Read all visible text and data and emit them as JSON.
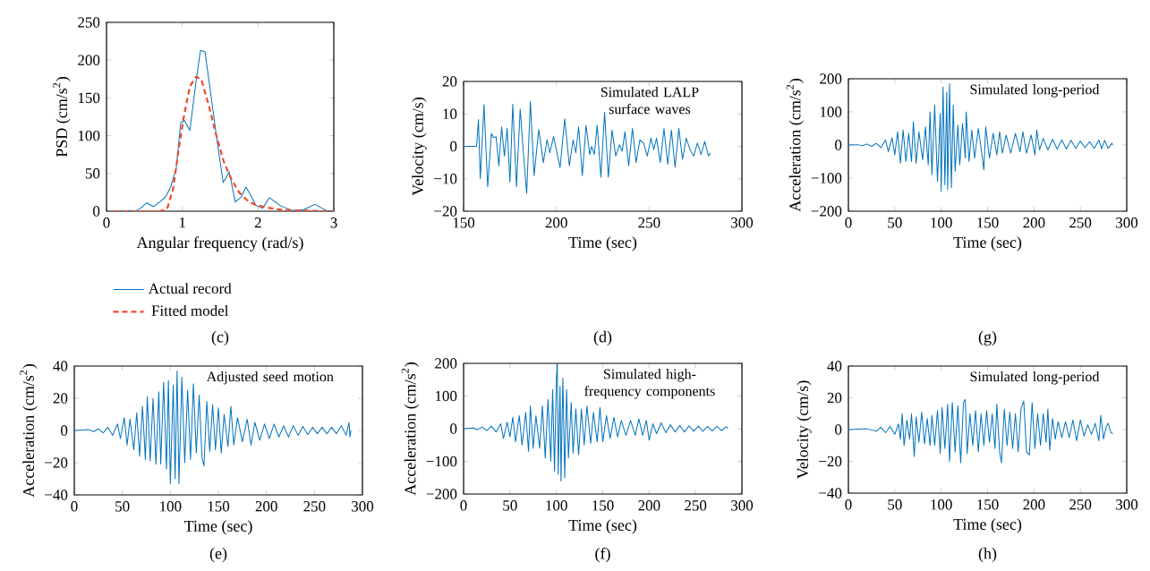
{
  "chart_data": [
    {
      "type": "line",
      "xlabel": "Angular frequency (rad/s)",
      "ylabel": "PSD (cm/s$^{2}$)",
      "annotations": [
        "(c)"
      ],
      "legend": "bottom",
      "xlim": [
        0,
        3
      ],
      "ylim": [
        0,
        250
      ],
      "xticks": [
        0,
        1,
        2,
        3
      ],
      "yticks": [
        0,
        50,
        100,
        150,
        200,
        250
      ],
      "series": [
        {
          "name": "Actual record",
          "color": "#0072bd",
          "line_style": "solid",
          "x": [
            0.1,
            0.4,
            0.45,
            0.53,
            0.62,
            0.7,
            0.78,
            0.85,
            0.92,
            0.98,
            1.03,
            1.1,
            1.18,
            1.24,
            1.3,
            1.37,
            1.45,
            1.54,
            1.62,
            1.7,
            1.78,
            1.84,
            1.9,
            1.97,
            2.06,
            2.15,
            2.3,
            2.45,
            2.6,
            2.75,
            2.9,
            3
          ],
          "values": [
            0,
            1,
            4,
            11,
            6,
            12,
            19,
            33,
            57,
            117,
            120,
            107,
            170,
            213,
            211,
            160,
            100,
            38,
            52,
            12,
            19,
            32,
            22,
            8,
            4,
            18,
            7,
            1,
            2,
            9,
            1,
            0
          ]
        },
        {
          "name": "Fitted model",
          "color": "#f04a2c",
          "line_style": "dashed",
          "x": [
            0.1,
            0.7,
            0.8,
            0.88,
            0.95,
            1.02,
            1.1,
            1.18,
            1.25,
            1.35,
            1.45,
            1.55,
            1.65,
            1.75,
            1.85,
            1.95,
            2.1,
            2.3,
            2.5,
            3
          ],
          "values": [
            0,
            0,
            3,
            30,
            80,
            125,
            165,
            178,
            175,
            140,
            100,
            65,
            42,
            25,
            15,
            9,
            5,
            2,
            1,
            0
          ]
        }
      ]
    },
    {
      "type": "line",
      "xlabel": "Time (sec)",
      "ylabel": "Velocity (cm/s)",
      "annotations": [
        "Simulated LALP surface waves",
        "(d)"
      ],
      "xlim": [
        150,
        300
      ],
      "ylim": [
        -20,
        20
      ],
      "xticks": [
        150,
        200,
        250,
        300
      ],
      "yticks": [
        {
          "value": -20,
          "label": "−20"
        },
        {
          "value": -10,
          "label": "−10"
        },
        0,
        10,
        20
      ],
      "series": [
        {
          "color": "#0072bd",
          "x": [
            150,
            157,
            158,
            159,
            161,
            163,
            165,
            166,
            167.5,
            169,
            170.5,
            172,
            173.5,
            175,
            176.5,
            178.5,
            180.5,
            182.5,
            184,
            186,
            188,
            190.5,
            193,
            195,
            196.5,
            198.5,
            202,
            204.5,
            207,
            209,
            210.5,
            212,
            214,
            216,
            218,
            219,
            220.5,
            222,
            224,
            226,
            228,
            230,
            232,
            234,
            235.5,
            237,
            239,
            241,
            243,
            245,
            247,
            249,
            251,
            252.5,
            254,
            256,
            258,
            260,
            262,
            264,
            266,
            268,
            270,
            272,
            274,
            276,
            278,
            280,
            282,
            283
          ],
          "values": [
            0,
            0,
            8.3,
            -10,
            12.8,
            -12.5,
            4,
            2.7,
            3,
            -6,
            6,
            -3,
            5.5,
            -11,
            13,
            -12.5,
            11.5,
            -4,
            -14.5,
            13.8,
            -9,
            5.2,
            -5,
            2,
            -2,
            3,
            -6.5,
            8.5,
            -6,
            2,
            -2,
            6,
            -9,
            6.5,
            -2.5,
            0,
            -2.5,
            6.5,
            -9.5,
            10.5,
            -9.5,
            5,
            -3,
            0.5,
            -1.5,
            4.5,
            -6,
            5.5,
            -5,
            2,
            1,
            -3,
            2.5,
            -1,
            2.5,
            -5,
            5.5,
            -5.5,
            5,
            -6.5,
            5.5,
            -4,
            2.5,
            -1,
            -3,
            1,
            -2.5,
            1.5,
            -3,
            -2
          ]
        }
      ]
    },
    {
      "type": "line",
      "xlabel": "Time (sec)",
      "ylabel": "Acceleration (cm/s$^{2}$)",
      "annotations": [
        "Simulated long-period",
        "(g)"
      ],
      "xlim": [
        0,
        300
      ],
      "ylim": [
        -200,
        200
      ],
      "xticks": [
        0,
        50,
        100,
        150,
        200,
        250,
        300
      ],
      "yticks": [
        {
          "value": -200,
          "label": "−200"
        },
        {
          "value": -100,
          "label": "−100"
        },
        0,
        100,
        200
      ],
      "series": [
        {
          "color": "#0072bd",
          "x": [
            0,
            10,
            15,
            20,
            25,
            30,
            35,
            40,
            43,
            47,
            50,
            53,
            56,
            59,
            62,
            65,
            68,
            70,
            73,
            76,
            80,
            83,
            86,
            88,
            90,
            93,
            96,
            99,
            100,
            102,
            104,
            106,
            107,
            109,
            111,
            113,
            115,
            118,
            120,
            123,
            126,
            127,
            130,
            133,
            136,
            140,
            144,
            146,
            148,
            152,
            156,
            160,
            163,
            166,
            170,
            175,
            180,
            185,
            188,
            192,
            197,
            201,
            203,
            206,
            210,
            215,
            220,
            225,
            230,
            235,
            240,
            245,
            250,
            255,
            260,
            265,
            270,
            273,
            276,
            280,
            284,
            285
          ],
          "values": [
            0,
            1,
            -2,
            3,
            -4,
            5,
            -8,
            15,
            -20,
            22,
            -30,
            40,
            -55,
            45,
            -50,
            35,
            -50,
            70,
            -55,
            40,
            -45,
            55,
            -60,
            100,
            -90,
            120,
            -110,
            95,
            -140,
            175,
            -120,
            160,
            -135,
            185,
            -130,
            120,
            -80,
            60,
            -60,
            65,
            -40,
            100,
            -50,
            45,
            -40,
            50,
            -30,
            -75,
            55,
            -40,
            35,
            -30,
            40,
            -25,
            30,
            -25,
            35,
            -20,
            40,
            -25,
            30,
            -30,
            45,
            -15,
            20,
            -15,
            17,
            -12,
            15,
            -12,
            14,
            -10,
            12,
            -8,
            10,
            -10,
            15,
            -12,
            14,
            -10,
            5,
            0
          ]
        }
      ]
    },
    {
      "type": "line",
      "xlabel": "Time (sec)",
      "ylabel": "Acceleration (cm/s$^{2}$)",
      "annotations": [
        "Adjusted seed motion",
        "(e)"
      ],
      "xlim": [
        0,
        300
      ],
      "ylim": [
        -40,
        40
      ],
      "xticks": [
        0,
        50,
        100,
        150,
        200,
        250,
        300
      ],
      "yticks": [
        {
          "value": -40,
          "label": "−40"
        },
        {
          "value": -20,
          "label": "−20"
        },
        0,
        20,
        40
      ],
      "series": [
        {
          "color": "#0072bd",
          "x": [
            0,
            15,
            20,
            25,
            30,
            35,
            40,
            45,
            48,
            52,
            55,
            58,
            62,
            65,
            68,
            71,
            74,
            76,
            79,
            82,
            85,
            88,
            90,
            93,
            96,
            98,
            100,
            103,
            105,
            107,
            109,
            112,
            115,
            118,
            121,
            124,
            127,
            130,
            133,
            135,
            138,
            141,
            144,
            147,
            150,
            153,
            156,
            160,
            163,
            166,
            170,
            175,
            180,
            184,
            188,
            193,
            198,
            203,
            208,
            213,
            218,
            223,
            228,
            233,
            238,
            243,
            248,
            253,
            258,
            263,
            268,
            273,
            278,
            283,
            286,
            287,
            288
          ],
          "values": [
            0,
            0.5,
            -0.7,
            1,
            -1.5,
            2,
            -3,
            4,
            -5,
            8,
            -9,
            7,
            -12,
            11,
            -16,
            15,
            -18,
            21,
            -19,
            20,
            -21,
            24,
            -21,
            30,
            -24,
            31,
            -33,
            28,
            -30,
            37,
            -33,
            33,
            -20,
            25,
            -18,
            29,
            -14,
            22,
            -17,
            -22,
            18,
            -13,
            16,
            -12,
            14,
            -14,
            10,
            -10,
            15,
            -9,
            8,
            -7,
            7,
            -9,
            5,
            -6,
            4,
            -5,
            4,
            -4,
            3,
            -4,
            3,
            -3,
            2.5,
            -2.5,
            2,
            -2,
            2,
            -2,
            2,
            -2,
            3,
            -3,
            5,
            -4,
            0
          ]
        }
      ]
    },
    {
      "type": "line",
      "xlabel": "Time (sec)",
      "ylabel": "Acceleration (cm/s$^{2}$)",
      "annotations": [
        "Simulated high-frequency components",
        "(f)"
      ],
      "xlim": [
        0,
        300
      ],
      "ylim": [
        -200,
        200
      ],
      "xticks": [
        0,
        50,
        100,
        150,
        200,
        250,
        300
      ],
      "yticks": [
        {
          "value": -200,
          "label": "−200"
        },
        {
          "value": -100,
          "label": "−100"
        },
        0,
        100,
        200
      ],
      "series": [
        {
          "color": "#0072bd",
          "x": [
            0,
            10,
            15,
            20,
            25,
            30,
            35,
            40,
            43,
            47,
            50,
            53,
            56,
            60,
            63,
            67,
            70,
            72,
            75,
            78,
            82,
            85,
            88,
            91,
            94,
            96,
            98,
            100,
            101,
            102,
            104,
            105,
            107,
            109,
            111,
            113,
            116,
            118,
            121,
            124,
            127,
            130,
            133,
            137,
            140,
            144,
            147,
            150,
            154,
            158,
            162,
            166,
            170,
            175,
            180,
            185,
            189,
            193,
            197,
            200,
            204,
            208,
            213,
            218,
            223,
            228,
            233,
            238,
            243,
            248,
            253,
            258,
            263,
            268,
            273,
            278,
            283,
            285
          ],
          "values": [
            0,
            2,
            -3,
            5,
            -6,
            8,
            -10,
            15,
            -30,
            20,
            -25,
            35,
            -40,
            40,
            -50,
            50,
            -70,
            70,
            -60,
            40,
            -60,
            70,
            -90,
            90,
            -100,
            120,
            -130,
            150,
            200,
            -140,
            130,
            -160,
            155,
            -150,
            120,
            -90,
            80,
            -75,
            60,
            -80,
            60,
            -50,
            70,
            -45,
            50,
            -40,
            65,
            -40,
            40,
            -30,
            35,
            -25,
            25,
            -20,
            25,
            -20,
            30,
            -20,
            25,
            -35,
            15,
            -15,
            18,
            -12,
            12,
            -10,
            10,
            -10,
            9,
            -8,
            8,
            -8,
            7,
            -7,
            7,
            -6,
            6,
            0
          ]
        }
      ]
    },
    {
      "type": "line",
      "xlabel": "Time (sec)",
      "ylabel": "Velocity (cm/s)",
      "annotations": [
        "Simulated long-period",
        "(h)"
      ],
      "xlim": [
        0,
        300
      ],
      "ylim": [
        -40,
        40
      ],
      "xticks": [
        0,
        50,
        100,
        150,
        200,
        250,
        300
      ],
      "yticks": [
        {
          "value": -40,
          "label": "−40"
        },
        {
          "value": -20,
          "label": "−20"
        },
        0,
        20,
        40
      ],
      "series": [
        {
          "color": "#0072bd",
          "x": [
            0,
            20,
            30,
            35,
            40,
            45,
            50,
            54,
            56,
            58,
            60,
            63,
            66,
            68,
            71,
            73,
            76,
            79,
            82,
            85,
            88,
            90,
            93,
            96,
            99,
            101,
            104,
            107,
            109,
            112,
            115,
            118,
            121,
            124,
            126,
            128,
            131,
            134,
            137,
            140,
            143,
            146,
            149,
            152,
            155,
            158,
            160,
            163,
            165,
            168,
            171,
            174,
            177,
            180,
            183,
            186,
            189,
            192,
            195,
            198,
            201,
            204,
            207,
            210,
            213,
            215,
            217,
            220,
            223,
            226,
            230,
            234,
            238,
            242,
            246,
            250,
            254,
            258,
            262,
            266,
            270,
            272,
            275,
            278,
            280,
            283,
            285
          ],
          "values": [
            0,
            0.5,
            -1,
            1.5,
            -2,
            2,
            -3,
            3.5,
            -6,
            10,
            -10,
            6,
            -6,
            10,
            -17,
            8,
            -8,
            11,
            -9,
            7,
            -10,
            9,
            -10,
            12,
            -15,
            14,
            -12,
            16,
            -20,
            17,
            -14,
            15,
            -21,
            17,
            19,
            -15,
            10,
            -10,
            12,
            -14,
            10,
            -10,
            12,
            -8,
            10,
            -12,
            16,
            -14,
            -21,
            13,
            -10,
            11,
            -12,
            10,
            -14,
            13,
            18,
            -14,
            -16,
            17,
            -12,
            10,
            -10,
            10,
            -8,
            13,
            -13,
            7,
            -6,
            5,
            -5,
            5,
            -5,
            6,
            -7,
            6,
            -4,
            3,
            -3,
            4,
            -7,
            9,
            -6,
            2,
            4,
            -2,
            -2.5
          ]
        }
      ]
    }
  ]
}
